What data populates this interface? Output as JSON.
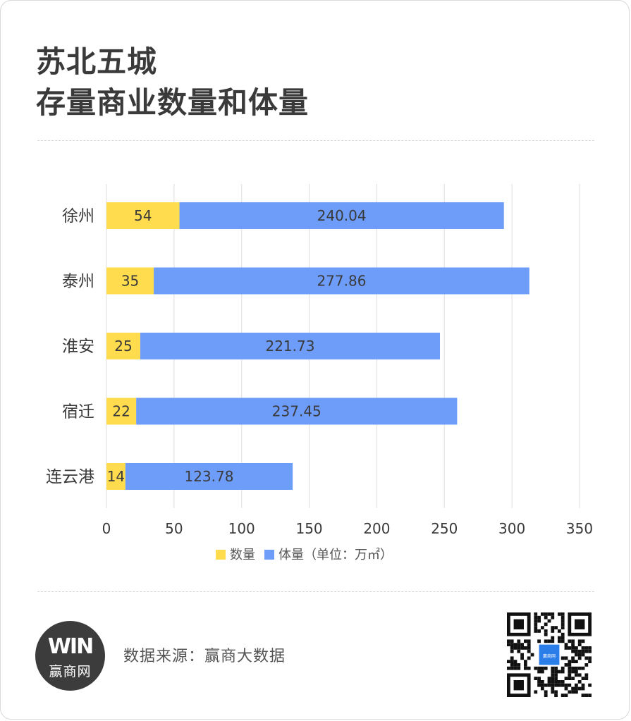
{
  "header": {
    "title_line1": "苏北五城",
    "title_line2": "存量商业数量和体量"
  },
  "footer": {
    "source": "数据来源：赢商大数据",
    "logo_mark": "WIN",
    "logo_name": "赢商网",
    "qr_center_label": "赢商网"
  },
  "colors": {
    "count": "#ffdc4e",
    "volume": "#6d9cf9",
    "grid": "#e3e3e3",
    "text": "#3a3a3a"
  },
  "chart_data": {
    "type": "bar",
    "orientation": "horizontal",
    "stacked": true,
    "categories": [
      "徐州",
      "泰州",
      "淮安",
      "宿迁",
      "连云港"
    ],
    "series": [
      {
        "name": "数量",
        "values": [
          54,
          35,
          25,
          22,
          14
        ]
      },
      {
        "name": "体量（单位：万㎡）",
        "values": [
          240.04,
          277.86,
          221.73,
          237.45,
          123.78
        ]
      }
    ],
    "value_labels": [
      [
        "54",
        "35",
        "25",
        "22",
        "14"
      ],
      [
        "240.04",
        "277.86",
        "221.73",
        "237.45",
        "123.78"
      ]
    ],
    "xlim": [
      0,
      350
    ],
    "xticks": [
      "0",
      "50",
      "100",
      "150",
      "200",
      "250",
      "300",
      "350"
    ],
    "grid": "vertical",
    "legend": "bottom"
  }
}
